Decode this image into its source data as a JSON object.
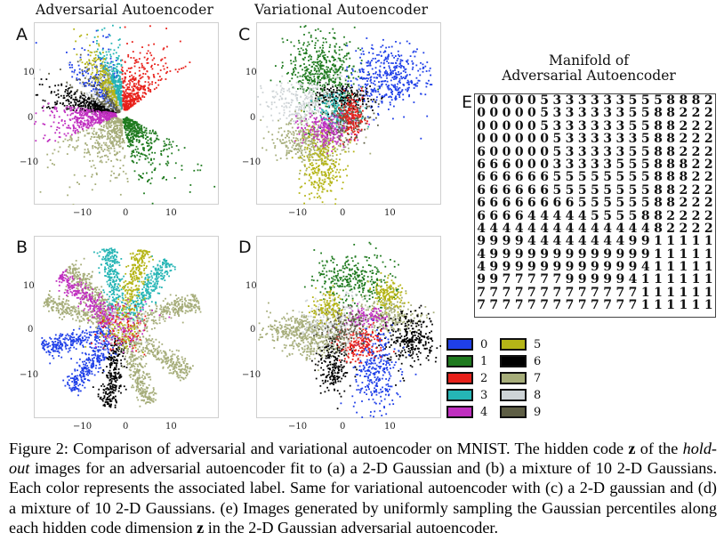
{
  "titles": {
    "adversarial": "Adversarial Autoencoder",
    "variational": "Variational Autoencoder",
    "manifold_line1": "Manifold of",
    "manifold_line2": "Adversarial Autoencoder"
  },
  "panels": {
    "a": "A",
    "b": "B",
    "c": "C",
    "d": "D",
    "e": "E"
  },
  "ticks": {
    "y_top": "10",
    "y_mid": "0",
    "y_bottom": "−10",
    "x_left": "−10",
    "x_mid": "0",
    "x_right": "10"
  },
  "legend": [
    {
      "label": "0",
      "color": "#1f3fe8"
    },
    {
      "label": "1",
      "color": "#1e7a1e"
    },
    {
      "label": "2",
      "color": "#e8201a"
    },
    {
      "label": "3",
      "color": "#25b5b5"
    },
    {
      "label": "4",
      "color": "#c02fc0"
    },
    {
      "label": "5",
      "color": "#b5b517"
    },
    {
      "label": "6",
      "color": "#000000"
    },
    {
      "label": "7",
      "color": "#a6ad7a"
    },
    {
      "label": "8",
      "color": "#cdd3d6"
    },
    {
      "label": "9",
      "color": "#5e5e45"
    }
  ],
  "manifold_rows": [
    "0000053333335558882",
    "0000053333335588222",
    "0000053333335588222",
    "0000005333333588222",
    "6000005333335588222",
    "6660003333355588822",
    "6666665555555588822",
    "6666665555555588222",
    "6666666655555588222",
    "6666444445555882222",
    "4444444444444482222",
    "9999444444449911111",
    "4999999999999911111",
    "4999999999999411111",
    "9977777999994111111",
    "7777777777777111111",
    "7777777777777111111"
  ],
  "caption": {
    "p1": "Figure 2: Comparison of adversarial and variational autoencoder on MNIST. The hidden code ",
    "z1": "z",
    "p2": " of the ",
    "holdout": "hold-out",
    "p3": " images for an adversarial autoencoder fit to (a) a 2-D Gaussian and (b) a mixture of 10 2-D Gaussians. Each color represents the associated label. Same for variational autoencoder with (c) a 2-D gaussian and (d) a mixture of 10 2-D Gaussians. (e) Images generated by uniformly sampling the Gaussian percentiles along each hidden code dimension ",
    "z2": "z",
    "p4": " in the 2-D Gaussian adversarial autoencoder."
  }
}
